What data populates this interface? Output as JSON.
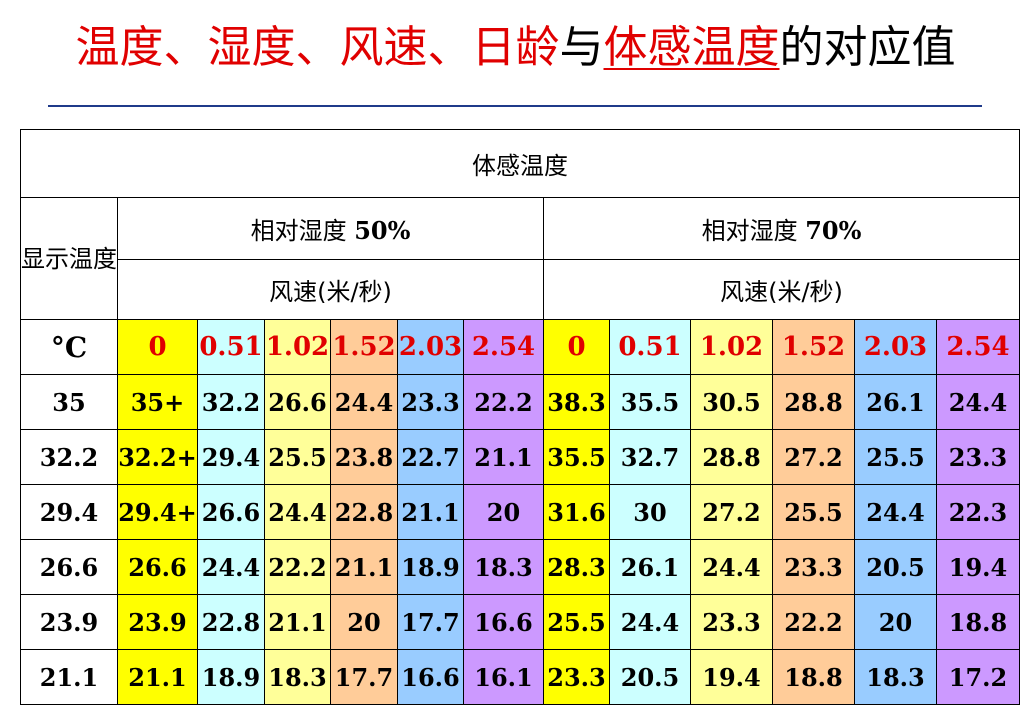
{
  "title": {
    "part1": "温度、湿度、风速、日龄",
    "part2": "与",
    "part3": "体感温度",
    "part4": "的对应值"
  },
  "table": {
    "header_main": "体感温度",
    "side_label": "显示温度",
    "rh50": {
      "label": "相对湿度",
      "value": "50%"
    },
    "rh70": {
      "label": "相对湿度",
      "value": "70%"
    },
    "wind_label": "风速(米/秒)",
    "unit": "°C",
    "wind_speeds_50": [
      "0",
      "0.51",
      "1.02",
      "1.52",
      "2.03",
      "2.54"
    ],
    "wind_speeds_70": [
      "0",
      "0.51",
      "1.02",
      "1.52",
      "2.03",
      "2.54"
    ],
    "rows": [
      {
        "temp": "35",
        "rh50": [
          "35+",
          "32.2",
          "26.6",
          "24.4",
          "23.3",
          "22.2"
        ],
        "rh70": [
          "38.3",
          "35.5",
          "30.5",
          "28.8",
          "26.1",
          "24.4"
        ]
      },
      {
        "temp": "32.2",
        "rh50": [
          "32.2+",
          "29.4",
          "25.5",
          "23.8",
          "22.7",
          "21.1"
        ],
        "rh70": [
          "35.5",
          "32.7",
          "28.8",
          "27.2",
          "25.5",
          "23.3"
        ]
      },
      {
        "temp": "29.4",
        "rh50": [
          "29.4+",
          "26.6",
          "24.4",
          "22.8",
          "21.1",
          "20"
        ],
        "rh70": [
          "31.6",
          "30",
          "27.2",
          "25.5",
          "24.4",
          "22.3"
        ]
      },
      {
        "temp": "26.6",
        "rh50": [
          "26.6",
          "24.4",
          "22.2",
          "21.1",
          "18.9",
          "18.3"
        ],
        "rh70": [
          "28.3",
          "26.1",
          "24.4",
          "23.3",
          "20.5",
          "19.4"
        ]
      },
      {
        "temp": "23.9",
        "rh50": [
          "23.9",
          "22.8",
          "21.1",
          "20",
          "17.7",
          "16.6"
        ],
        "rh70": [
          "25.5",
          "24.4",
          "23.3",
          "22.2",
          "20",
          "18.8"
        ]
      },
      {
        "temp": "21.1",
        "rh50": [
          "21.1",
          "18.9",
          "18.3",
          "17.7",
          "16.6",
          "16.1"
        ],
        "rh70": [
          "23.3",
          "20.5",
          "19.4",
          "18.8",
          "18.3",
          "17.2"
        ]
      }
    ]
  },
  "colors": {
    "title_red": "#e00000",
    "rule": "#1f3a8a",
    "wind_columns": [
      "#ffff00",
      "#ccffff",
      "#ffff99",
      "#ffcc99",
      "#99ccff",
      "#cc99ff"
    ]
  }
}
